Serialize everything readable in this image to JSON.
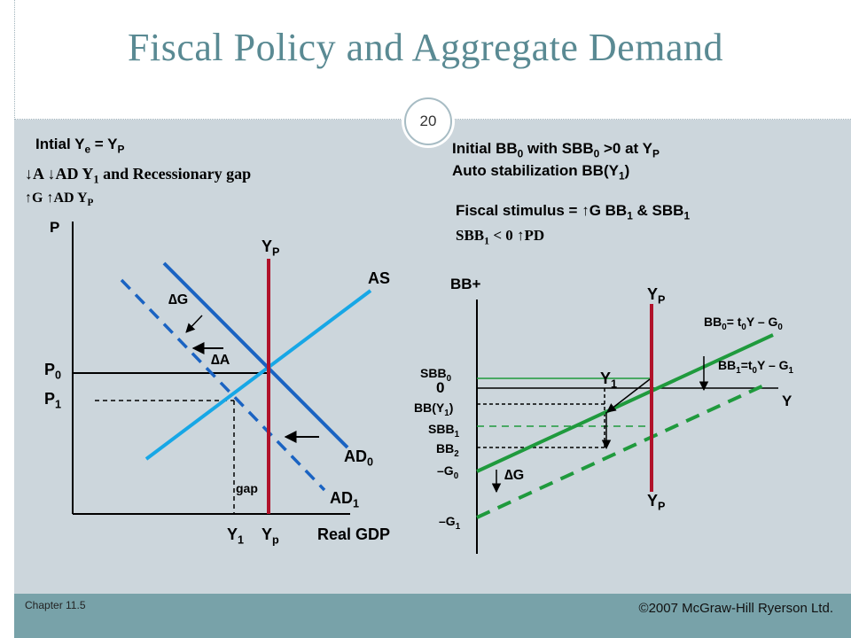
{
  "slide": {
    "title": "Fiscal Policy and Aggregate Demand",
    "page_number": "20",
    "chapter": "Chapter 11.5",
    "copyright": "©2007 McGraw-Hill Ryerson Ltd."
  },
  "left_notes": {
    "line1_a": "Intial Y",
    "line1_sub1": "e",
    "line1_b": " = Y",
    "line1_sub2": "P",
    "line2_a": "↓A  ↓AD  Y",
    "line2_sub": "1",
    "line2_b": " and Recessionary gap",
    "line3_a": "↑G  ↑AD  Y",
    "line3_sub": "P"
  },
  "right_notes": {
    "line1_a": "Initial BB",
    "line1_sub1": "0",
    "line1_b": " with SBB",
    "line1_sub2": "0",
    "line1_c": " >0 at Y",
    "line1_sub3": "P",
    "line2_a": "Auto stabilization  BB(Y",
    "line2_sub": "1",
    "line2_b": ")",
    "line3_a": "Fiscal stimulus = ↑G  BB",
    "line3_sub1": "1",
    "line3_b": " & SBB",
    "line3_sub2": "1",
    "line4_a": "SBB",
    "line4_sub": "1",
    "line4_b": " < 0  ↑PD"
  },
  "ad_diagram": {
    "y_axis": "P",
    "x_axis": "Real GDP",
    "p0": "P",
    "p0_sub": "0",
    "p1": "P",
    "p1_sub": "1",
    "y1": "Y",
    "y1_sub": "1",
    "yp_bottom": "Y",
    "yp_bottom_sub": "p",
    "yp_top": "Y",
    "yp_top_sub": "P",
    "as": "AS",
    "ad0": "AD",
    "ad0_sub": "0",
    "ad1": "AD",
    "ad1_sub": "1",
    "delta_g": "∆G",
    "delta_a": "∆A",
    "gap": "gap"
  },
  "bb_diagram": {
    "y_axis": "BB+",
    "x_axis": "Y",
    "zero": "0",
    "yp_top": "Y",
    "yp_top_sub": "P",
    "yp_bottom": "Y",
    "yp_bottom_sub": "P",
    "y1": "Y",
    "y1_sub": "1",
    "sbb0": "SBB",
    "sbb0_sub": "0",
    "bby1_a": "BB(Y",
    "bby1_sub": "1",
    "bby1_b": ")",
    "sbb1": "SBB",
    "sbb1_sub": "1",
    "bb2": "BB",
    "bb2_sub": "2",
    "neg_g0": "–G",
    "neg_g0_sub": "0",
    "neg_g1": "–G",
    "neg_g1_sub": "1",
    "delta_g": "∆G",
    "bb0_a": "BB",
    "bb0_sub1": "0",
    "bb0_b": "= t",
    "bb0_sub2": "0",
    "bb0_c": "Y – G",
    "bb0_sub3": "0",
    "bb1_a": "BB",
    "bb1_sub1": "1",
    "bb1_b": "=t",
    "bb1_sub2": "0",
    "bb1_c": "Y – G",
    "bb1_sub3": "1"
  },
  "colors": {
    "title": "#5a8a93",
    "content_bg": "#ccd6dc",
    "footer_bg": "#78a2a9",
    "ad_line": "#1a63c2",
    "as_line": "#17a7e6",
    "potential_line": "#b0122a",
    "bb_line": "#1f9a3d"
  }
}
